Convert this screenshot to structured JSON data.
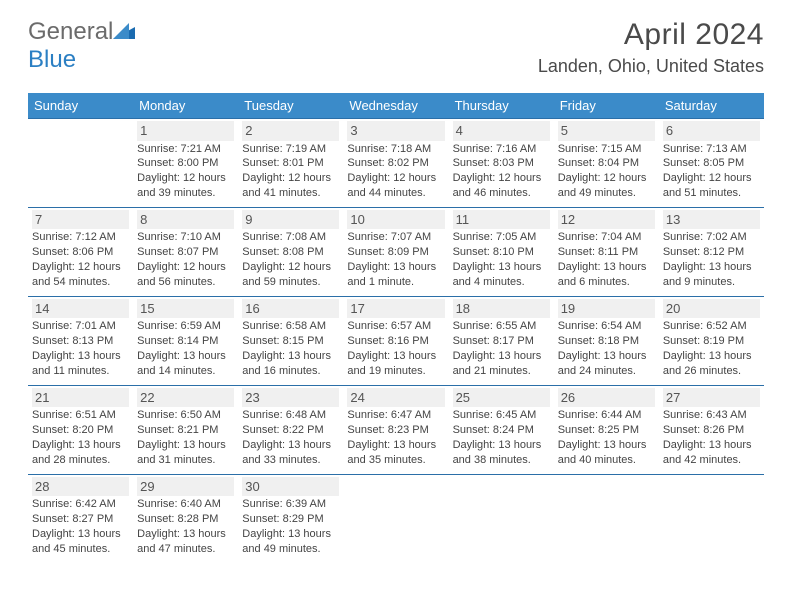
{
  "logo": {
    "part1": "General",
    "part2": "Blue"
  },
  "header": {
    "title": "April 2024",
    "location": "Landen, Ohio, United States"
  },
  "colors": {
    "header_bg": "#3b8bc9",
    "header_text": "#ffffff",
    "cell_border": "#2b6fa8",
    "text": "#444444",
    "daynum_bg": "#f0f0f0",
    "logo_grey": "#6b6b6b",
    "logo_blue": "#2b7fc3"
  },
  "weekdays": [
    "Sunday",
    "Monday",
    "Tuesday",
    "Wednesday",
    "Thursday",
    "Friday",
    "Saturday"
  ],
  "layout": {
    "first_weekday_index": 1,
    "days_in_month": 30
  },
  "days": {
    "1": {
      "sunrise": "7:21 AM",
      "sunset": "8:00 PM",
      "daylight1": "Daylight: 12 hours",
      "daylight2": "and 39 minutes."
    },
    "2": {
      "sunrise": "7:19 AM",
      "sunset": "8:01 PM",
      "daylight1": "Daylight: 12 hours",
      "daylight2": "and 41 minutes."
    },
    "3": {
      "sunrise": "7:18 AM",
      "sunset": "8:02 PM",
      "daylight1": "Daylight: 12 hours",
      "daylight2": "and 44 minutes."
    },
    "4": {
      "sunrise": "7:16 AM",
      "sunset": "8:03 PM",
      "daylight1": "Daylight: 12 hours",
      "daylight2": "and 46 minutes."
    },
    "5": {
      "sunrise": "7:15 AM",
      "sunset": "8:04 PM",
      "daylight1": "Daylight: 12 hours",
      "daylight2": "and 49 minutes."
    },
    "6": {
      "sunrise": "7:13 AM",
      "sunset": "8:05 PM",
      "daylight1": "Daylight: 12 hours",
      "daylight2": "and 51 minutes."
    },
    "7": {
      "sunrise": "7:12 AM",
      "sunset": "8:06 PM",
      "daylight1": "Daylight: 12 hours",
      "daylight2": "and 54 minutes."
    },
    "8": {
      "sunrise": "7:10 AM",
      "sunset": "8:07 PM",
      "daylight1": "Daylight: 12 hours",
      "daylight2": "and 56 minutes."
    },
    "9": {
      "sunrise": "7:08 AM",
      "sunset": "8:08 PM",
      "daylight1": "Daylight: 12 hours",
      "daylight2": "and 59 minutes."
    },
    "10": {
      "sunrise": "7:07 AM",
      "sunset": "8:09 PM",
      "daylight1": "Daylight: 13 hours",
      "daylight2": "and 1 minute."
    },
    "11": {
      "sunrise": "7:05 AM",
      "sunset": "8:10 PM",
      "daylight1": "Daylight: 13 hours",
      "daylight2": "and 4 minutes."
    },
    "12": {
      "sunrise": "7:04 AM",
      "sunset": "8:11 PM",
      "daylight1": "Daylight: 13 hours",
      "daylight2": "and 6 minutes."
    },
    "13": {
      "sunrise": "7:02 AM",
      "sunset": "8:12 PM",
      "daylight1": "Daylight: 13 hours",
      "daylight2": "and 9 minutes."
    },
    "14": {
      "sunrise": "7:01 AM",
      "sunset": "8:13 PM",
      "daylight1": "Daylight: 13 hours",
      "daylight2": "and 11 minutes."
    },
    "15": {
      "sunrise": "6:59 AM",
      "sunset": "8:14 PM",
      "daylight1": "Daylight: 13 hours",
      "daylight2": "and 14 minutes."
    },
    "16": {
      "sunrise": "6:58 AM",
      "sunset": "8:15 PM",
      "daylight1": "Daylight: 13 hours",
      "daylight2": "and 16 minutes."
    },
    "17": {
      "sunrise": "6:57 AM",
      "sunset": "8:16 PM",
      "daylight1": "Daylight: 13 hours",
      "daylight2": "and 19 minutes."
    },
    "18": {
      "sunrise": "6:55 AM",
      "sunset": "8:17 PM",
      "daylight1": "Daylight: 13 hours",
      "daylight2": "and 21 minutes."
    },
    "19": {
      "sunrise": "6:54 AM",
      "sunset": "8:18 PM",
      "daylight1": "Daylight: 13 hours",
      "daylight2": "and 24 minutes."
    },
    "20": {
      "sunrise": "6:52 AM",
      "sunset": "8:19 PM",
      "daylight1": "Daylight: 13 hours",
      "daylight2": "and 26 minutes."
    },
    "21": {
      "sunrise": "6:51 AM",
      "sunset": "8:20 PM",
      "daylight1": "Daylight: 13 hours",
      "daylight2": "and 28 minutes."
    },
    "22": {
      "sunrise": "6:50 AM",
      "sunset": "8:21 PM",
      "daylight1": "Daylight: 13 hours",
      "daylight2": "and 31 minutes."
    },
    "23": {
      "sunrise": "6:48 AM",
      "sunset": "8:22 PM",
      "daylight1": "Daylight: 13 hours",
      "daylight2": "and 33 minutes."
    },
    "24": {
      "sunrise": "6:47 AM",
      "sunset": "8:23 PM",
      "daylight1": "Daylight: 13 hours",
      "daylight2": "and 35 minutes."
    },
    "25": {
      "sunrise": "6:45 AM",
      "sunset": "8:24 PM",
      "daylight1": "Daylight: 13 hours",
      "daylight2": "and 38 minutes."
    },
    "26": {
      "sunrise": "6:44 AM",
      "sunset": "8:25 PM",
      "daylight1": "Daylight: 13 hours",
      "daylight2": "and 40 minutes."
    },
    "27": {
      "sunrise": "6:43 AM",
      "sunset": "8:26 PM",
      "daylight1": "Daylight: 13 hours",
      "daylight2": "and 42 minutes."
    },
    "28": {
      "sunrise": "6:42 AM",
      "sunset": "8:27 PM",
      "daylight1": "Daylight: 13 hours",
      "daylight2": "and 45 minutes."
    },
    "29": {
      "sunrise": "6:40 AM",
      "sunset": "8:28 PM",
      "daylight1": "Daylight: 13 hours",
      "daylight2": "and 47 minutes."
    },
    "30": {
      "sunrise": "6:39 AM",
      "sunset": "8:29 PM",
      "daylight1": "Daylight: 13 hours",
      "daylight2": "and 49 minutes."
    }
  },
  "labels": {
    "sunrise_prefix": "Sunrise: ",
    "sunset_prefix": "Sunset: "
  }
}
